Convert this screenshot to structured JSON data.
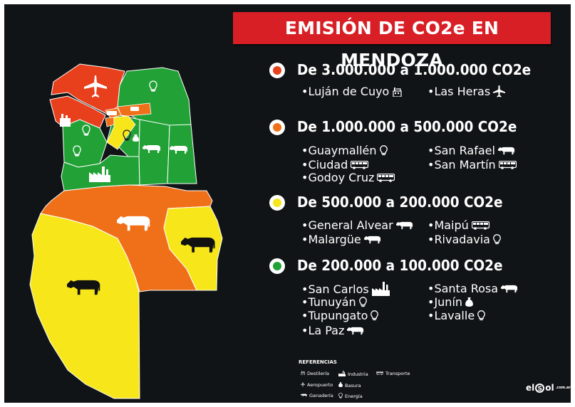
{
  "title": "EMISIÓN DE CO2e EN MENDOZA",
  "colors": {
    "red": "#e8401c",
    "orange": "#f07019",
    "yellow": "#f7e71a",
    "green": "#22a236",
    "title_bg": "#d81f26",
    "panel": "#111416"
  },
  "tiers": [
    {
      "label": "De 3.000.000 a 1.000.000 CO2e",
      "color": "#e8401c",
      "places": [
        {
          "name": "•Luján de Cuyo",
          "icon": "distillery-icon"
        },
        {
          "name": "•Las Heras",
          "icon": "airplane-icon"
        }
      ]
    },
    {
      "label": "De 1.000.000 a 500.000 CO2e",
      "color": "#f07019",
      "places": [
        {
          "name": "•Guaymallén",
          "icon": "lightbulb-icon"
        },
        {
          "name": "•San Rafael",
          "icon": "cow-icon"
        },
        {
          "name": "•Ciudad",
          "icon": "bus-icon"
        },
        {
          "name": "•San Martín",
          "icon": "bus-icon"
        },
        {
          "name": "•Godoy Cruz",
          "icon": "bus-icon"
        }
      ]
    },
    {
      "label": "De 500.000 a 200.000 CO2e",
      "color": "#f7e71a",
      "places": [
        {
          "name": "•General Alvear",
          "icon": "cow-icon"
        },
        {
          "name": "•Maipú",
          "icon": "bus-icon"
        },
        {
          "name": "•Malargüe",
          "icon": "cow-icon"
        },
        {
          "name": "•Rivadavia",
          "icon": "lightbulb-icon"
        }
      ]
    },
    {
      "label": "De 200.000 a 100.000 CO2e",
      "color": "#22a236",
      "places": [
        {
          "name": "•San Carlos",
          "icon": "factory-icon"
        },
        {
          "name": "•Santa Rosa",
          "icon": "cow-icon"
        },
        {
          "name": "•Tunuyán",
          "icon": "lightbulb-icon"
        },
        {
          "name": "•Junín",
          "icon": "trash-bag-icon"
        },
        {
          "name": "•Tupungato",
          "icon": "lightbulb-icon"
        },
        {
          "name": "•Lavalle",
          "icon": "lightbulb-icon"
        },
        {
          "name": "•La Paz",
          "icon": "cow-icon"
        }
      ]
    }
  ],
  "references": {
    "title": "REFERENCIAS",
    "items": [
      {
        "label": "Destilería",
        "icon": "distillery-icon"
      },
      {
        "label": "Industria",
        "icon": "factory-icon"
      },
      {
        "label": "Transporte",
        "icon": "bus-icon"
      },
      {
        "label": "Aeropuerto",
        "icon": "airplane-icon"
      },
      {
        "label": "Basura",
        "icon": "trash-bag-icon"
      },
      {
        "label": "Ganadería",
        "icon": "cow-icon"
      },
      {
        "label": "Energía",
        "icon": "lightbulb-icon"
      }
    ]
  },
  "logo": {
    "text_left": "el",
    "text_o": "S",
    "text_right": "ol",
    "tagline": ".com.ar"
  }
}
